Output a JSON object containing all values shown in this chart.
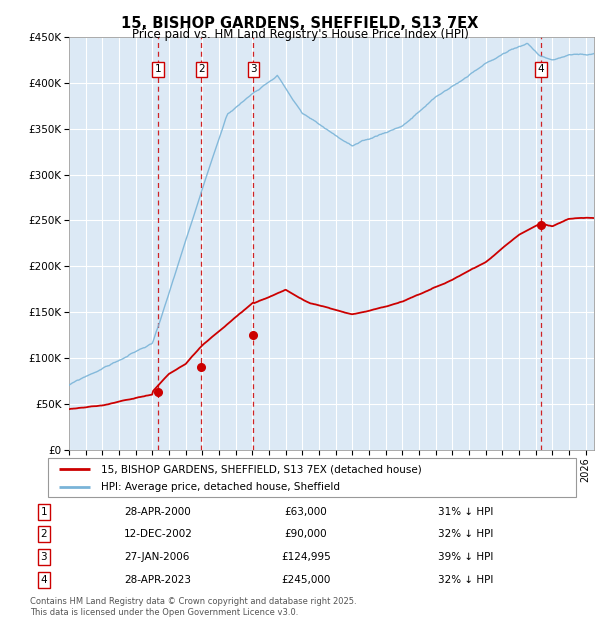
{
  "title": "15, BISHOP GARDENS, SHEFFIELD, S13 7EX",
  "subtitle": "Price paid vs. HM Land Registry's House Price Index (HPI)",
  "ylim": [
    0,
    450000
  ],
  "yticks": [
    0,
    50000,
    100000,
    150000,
    200000,
    250000,
    300000,
    350000,
    400000,
    450000
  ],
  "xlim_start": 1995.0,
  "xlim_end": 2026.5,
  "background_color": "#dce9f5",
  "grid_color": "#ffffff",
  "transactions": [
    {
      "num": 1,
      "date": "28-APR-2000",
      "price": 63000,
      "pct": "31%",
      "x_year": 2000.32
    },
    {
      "num": 2,
      "date": "12-DEC-2002",
      "price": 90000,
      "pct": "32%",
      "x_year": 2002.95
    },
    {
      "num": 3,
      "date": "27-JAN-2006",
      "price": 124995,
      "pct": "39%",
      "x_year": 2006.07
    },
    {
      "num": 4,
      "date": "28-APR-2023",
      "price": 245000,
      "pct": "32%",
      "x_year": 2023.32
    }
  ],
  "legend_line1": "15, BISHOP GARDENS, SHEFFIELD, S13 7EX (detached house)",
  "legend_line2": "HPI: Average price, detached house, Sheffield",
  "footer": "Contains HM Land Registry data © Crown copyright and database right 2025.\nThis data is licensed under the Open Government Licence v3.0.",
  "hpi_color": "#7ab4d8",
  "price_color": "#cc0000",
  "vline_color": "#cc0000"
}
